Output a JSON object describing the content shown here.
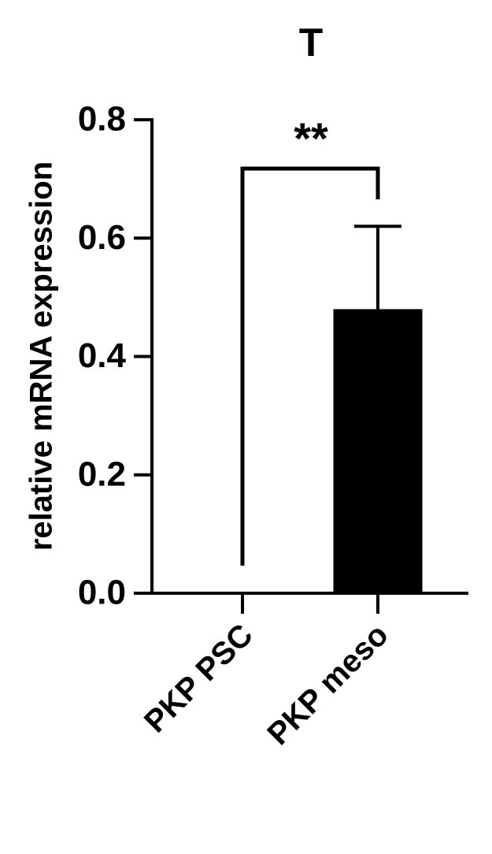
{
  "chart_data": {
    "type": "bar",
    "title": "T",
    "y_label": "relative mRNA expression",
    "categories": [
      "PKP PSC",
      "PKP meso"
    ],
    "values": [
      0,
      0.48
    ],
    "errors": [
      0,
      0.14
    ],
    "color": "#000000",
    "ylim": [
      0,
      0.8
    ],
    "yticks": [
      {
        "value": 0,
        "label": "0.0"
      },
      0.2,
      0.4,
      0.6,
      0.8
    ],
    "annotations": [
      "**"
    ]
  }
}
